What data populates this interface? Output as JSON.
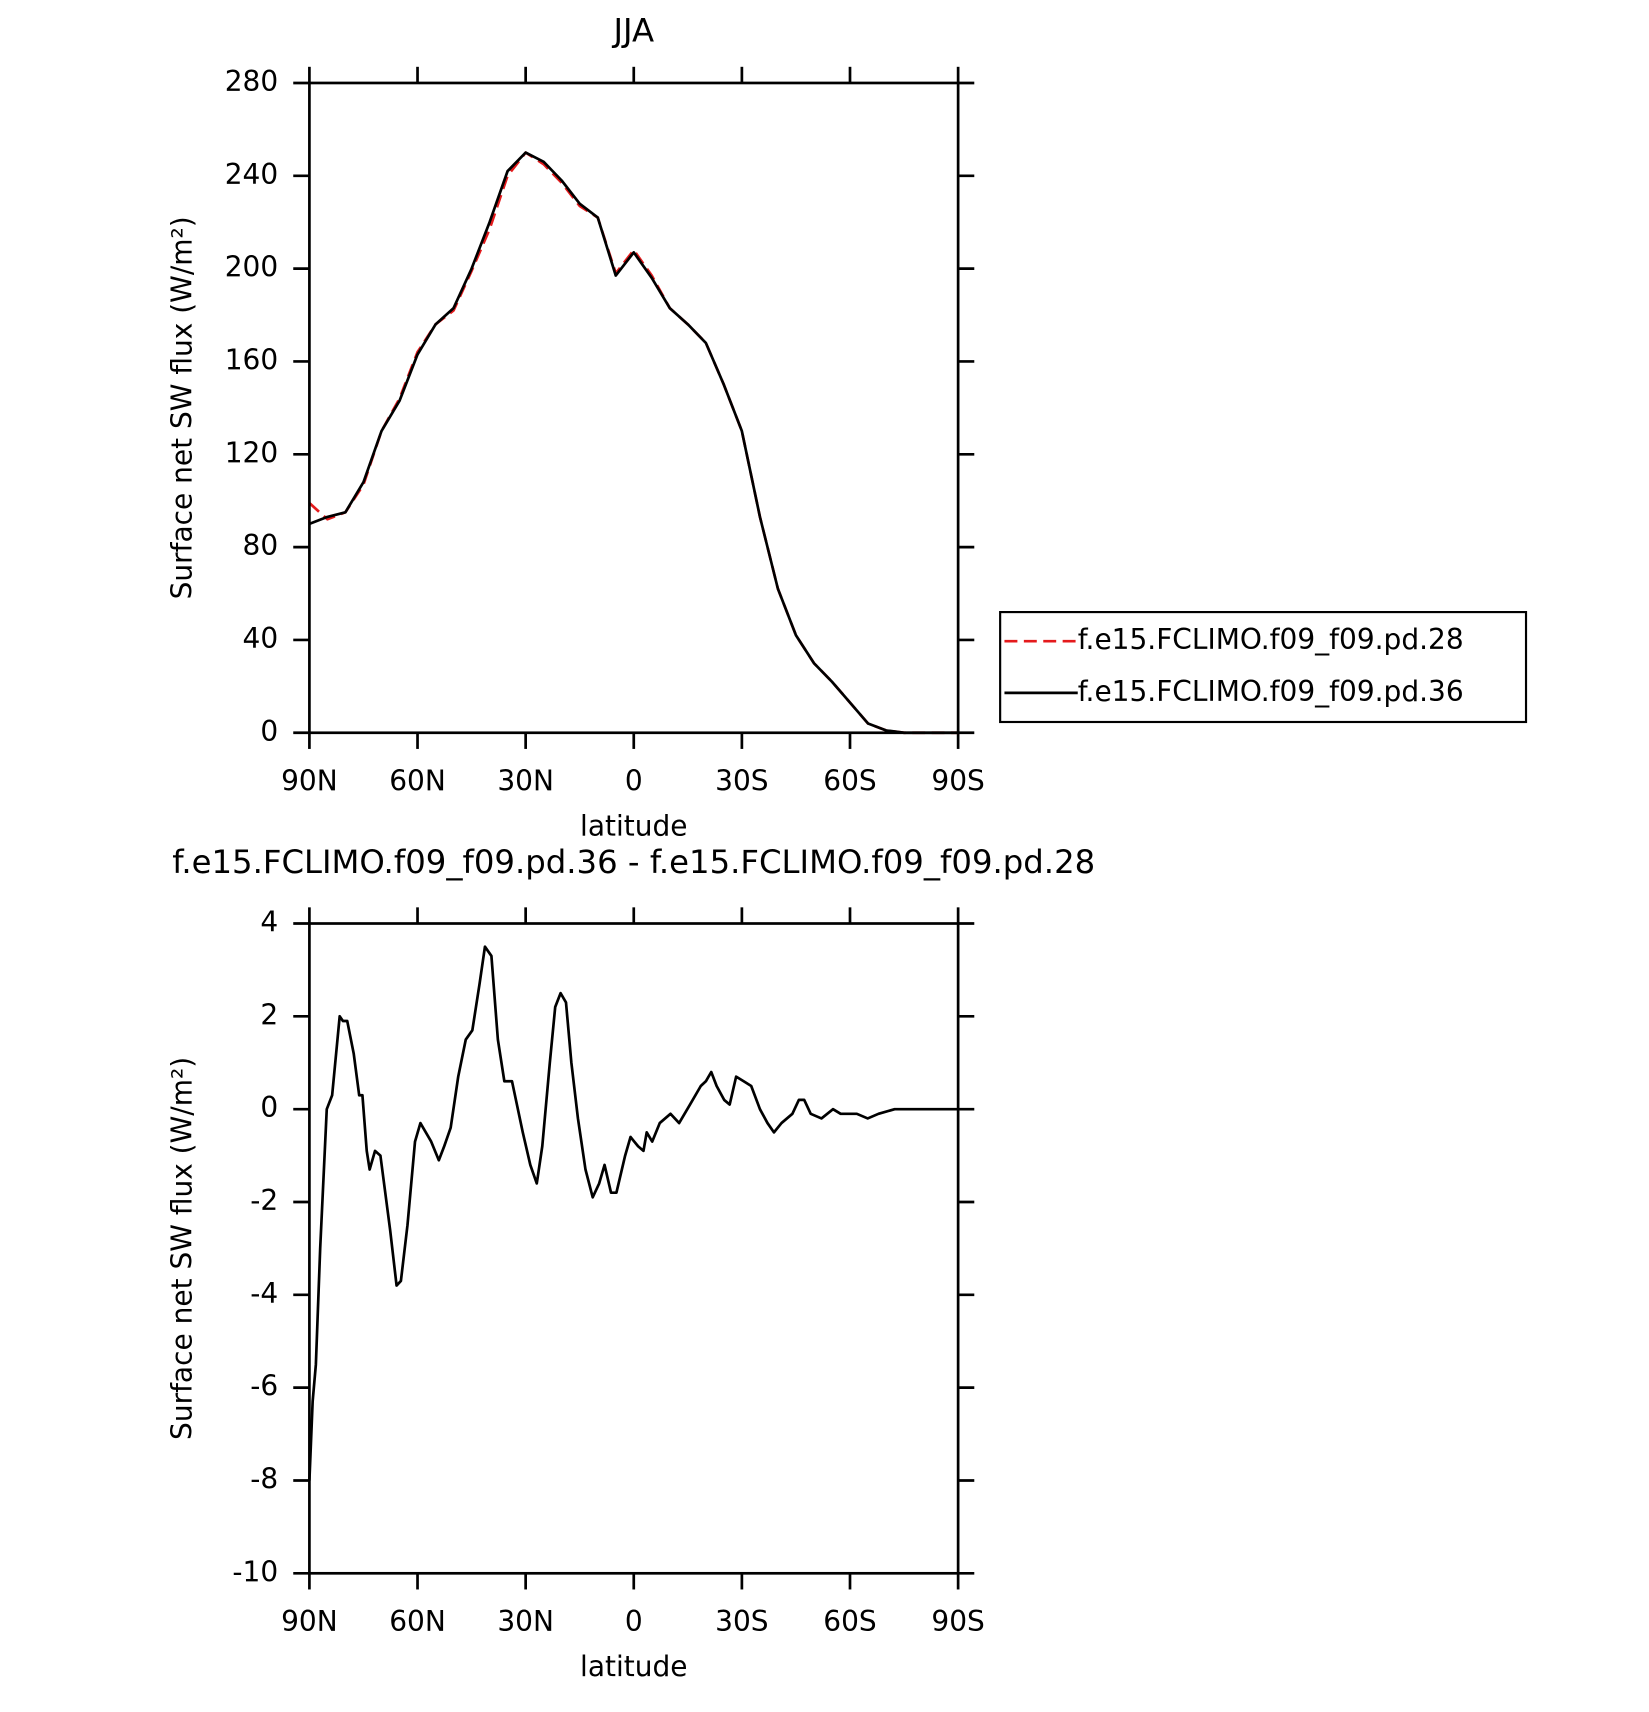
{
  "chart_data": [
    {
      "type": "line",
      "title": "JJA",
      "ylabel": "Surface net SW flux (W/m²)",
      "xlabel": "latitude",
      "x": [
        90,
        85,
        80,
        75,
        70,
        65,
        60,
        55,
        50,
        45,
        40,
        35,
        30,
        25,
        20,
        15,
        10,
        5,
        0,
        -5,
        -10,
        -15,
        -20,
        -25,
        -30,
        -35,
        -40,
        -45,
        -50,
        -55,
        -60,
        -65,
        -70,
        -75,
        -80,
        -85,
        -90
      ],
      "series": [
        {
          "name": "f.e15.FCLIMO.f09_f09.pd.28",
          "color": "#e41a1c",
          "linestyle": "dashed",
          "values": [
            99,
            92,
            95,
            107,
            130,
            144,
            164,
            176,
            182,
            199,
            217,
            240,
            250,
            245,
            237,
            227,
            222,
            198,
            208,
            197,
            183,
            176,
            168,
            150,
            130,
            93,
            62,
            42,
            30,
            22,
            13,
            4,
            1,
            0,
            0,
            0,
            0
          ]
        },
        {
          "name": "f.e15.FCLIMO.f09_f09.pd.36",
          "color": "#000000",
          "linestyle": "solid",
          "values": [
            90,
            93,
            95,
            108,
            130,
            143,
            163,
            176,
            183,
            200,
            220,
            242,
            250,
            246,
            238,
            228,
            222,
            197,
            207,
            196,
            183,
            176,
            168,
            150,
            130,
            93,
            62,
            42,
            30,
            22,
            13,
            4,
            1,
            0,
            0,
            0,
            0
          ]
        }
      ],
      "xlim": [
        90,
        -90
      ],
      "xticks": [
        {
          "value": 90,
          "label": "90N"
        },
        {
          "value": 60,
          "label": "60N"
        },
        {
          "value": 30,
          "label": "30N"
        },
        0,
        {
          "value": -30,
          "label": "30S"
        },
        {
          "value": -60,
          "label": "60S"
        },
        {
          "value": -90,
          "label": "90S"
        }
      ],
      "ylim": [
        0,
        280
      ],
      "yticks": [
        0,
        40,
        80,
        120,
        160,
        200,
        240,
        280
      ],
      "legend": "right",
      "grid": false
    },
    {
      "type": "line",
      "title": "f.e15.FCLIMO.f09_f09.pd.36 - f.e15.FCLIMO.f09_f09.pd.28",
      "ylabel": "Surface net SW flux (W/m²)",
      "xlabel": "latitude",
      "x": [
        90,
        89.1,
        88.2,
        87,
        85.2,
        83.7,
        81.6,
        80.7,
        79.5,
        77.7,
        76.2,
        75.3,
        74.1,
        73.3,
        71.8,
        70.3,
        67.6,
        65.8,
        64.6,
        62.8,
        60.7,
        59.2,
        57.7,
        56.2,
        54.1,
        52.6,
        50.8,
        48.7,
        46.6,
        44.8,
        42.8,
        41.3,
        39.5,
        37.7,
        35.9,
        33.8,
        30.8,
        28.7,
        26.9,
        25.4,
        23.3,
        21.8,
        20.3,
        18.8,
        17.3,
        15.5,
        13.4,
        11.4,
        9.6,
        8.1,
        6.3,
        4.8,
        2.4,
        0.9,
        -1.2,
        -2.7,
        -3.6,
        -5.1,
        -7.2,
        -10.2,
        -12.6,
        -15.6,
        -18.6,
        -20,
        -21.5,
        -23,
        -25.1,
        -26.6,
        -28.4,
        -30.5,
        -32.6,
        -35,
        -37.1,
        -38.9,
        -41,
        -44,
        -45.8,
        -47.3,
        -49.1,
        -52.1,
        -55.3,
        -57.4,
        -61.9,
        -64.9,
        -67.9,
        -72.4,
        -90
      ],
      "values": [
        -8,
        -6.3,
        -5.5,
        -3,
        0,
        0.3,
        2,
        1.9,
        1.9,
        1.2,
        0.3,
        0.3,
        -0.9,
        -1.3,
        -0.9,
        -1,
        -2.6,
        -3.8,
        -3.7,
        -2.5,
        -0.7,
        -0.3,
        -0.5,
        -0.7,
        -1.1,
        -0.8,
        -0.4,
        0.7,
        1.5,
        1.7,
        2.7,
        3.5,
        3.3,
        1.5,
        0.6,
        0.6,
        -0.5,
        -1.2,
        -1.6,
        -0.8,
        1,
        2.2,
        2.5,
        2.3,
        1,
        -0.2,
        -1.3,
        -1.9,
        -1.6,
        -1.2,
        -1.8,
        -1.8,
        -1,
        -0.6,
        -0.8,
        -0.9,
        -0.5,
        -0.7,
        -0.3,
        -0.1,
        -0.3,
        0.1,
        0.5,
        0.6,
        0.8,
        0.5,
        0.2,
        0.1,
        0.7,
        0.6,
        0.5,
        0,
        -0.3,
        -0.5,
        -0.3,
        -0.1,
        0.2,
        0.2,
        -0.1,
        -0.2,
        0,
        -0.1,
        -0.1,
        -0.2,
        -0.1,
        0,
        0
      ],
      "color": "#000000",
      "linestyle": "solid",
      "xlim": [
        90,
        -90
      ],
      "xticks": [
        {
          "value": 90,
          "label": "90N"
        },
        {
          "value": 60,
          "label": "60N"
        },
        {
          "value": 30,
          "label": "30N"
        },
        0,
        {
          "value": -30,
          "label": "30S"
        },
        {
          "value": -60,
          "label": "60S"
        },
        {
          "value": -90,
          "label": "90S"
        }
      ],
      "ylim": [
        -10,
        4
      ],
      "yticks": [
        -10,
        -8,
        -6,
        -4,
        -2,
        0,
        2,
        4
      ],
      "grid": false
    }
  ]
}
